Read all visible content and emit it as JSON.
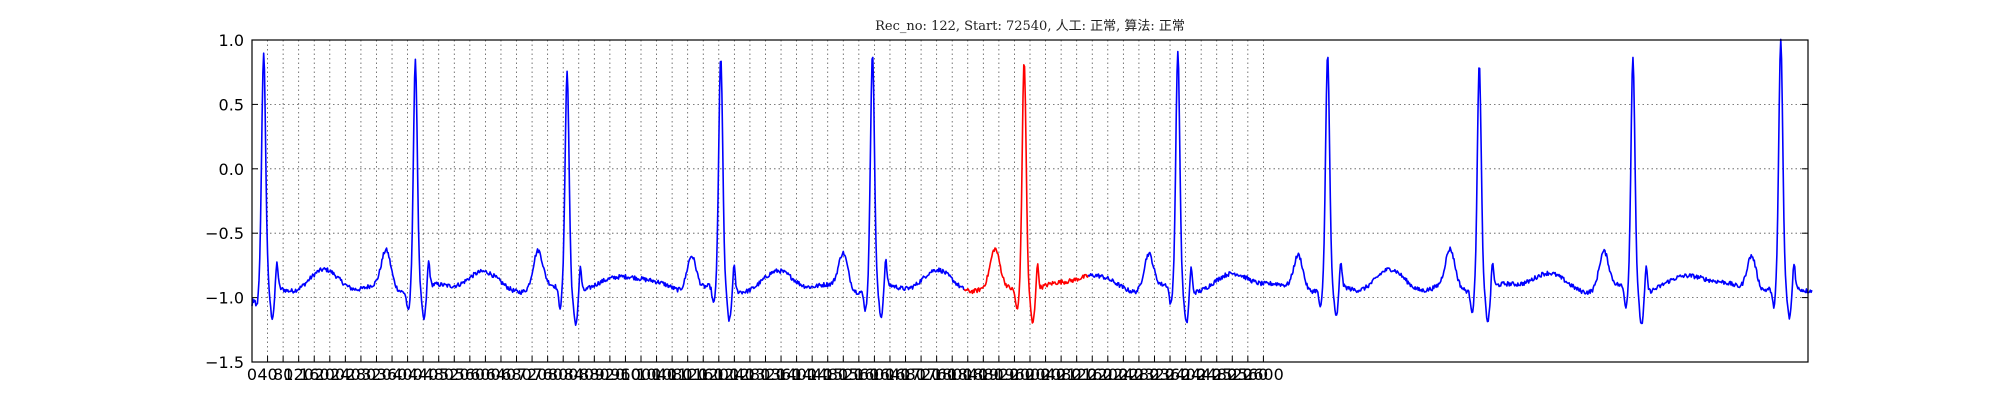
{
  "chart_data": {
    "type": "line",
    "title": "Rec_no: 122, Start: 72540, 人工: 正常, 算法: 正常",
    "xlabel": "",
    "ylabel": "",
    "xlim": [
      0,
      4000
    ],
    "ylim": [
      -1.5,
      1.0
    ],
    "grid": true,
    "y_ticks": [
      "1.0",
      "0.5",
      "0.0",
      "−0.5",
      "−1.0",
      "−1.5"
    ],
    "y_tick_values": [
      1.0,
      0.5,
      0.0,
      -0.5,
      -1.0,
      -1.5
    ],
    "x_ticks": [
      "0",
      "40",
      "80",
      "120",
      "160",
      "200",
      "240",
      "280",
      "320",
      "360",
      "400",
      "440",
      "480",
      "520",
      "560",
      "600",
      "640",
      "680",
      "720",
      "760",
      "800",
      "840",
      "880",
      "920",
      "960",
      "1000",
      "1040",
      "1080",
      "1120",
      "1160",
      "1200",
      "1240",
      "1280",
      "1320",
      "1360",
      "1400",
      "1440",
      "1480",
      "1520",
      "1560",
      "1600",
      "1640",
      "1680",
      "1720",
      "1760",
      "1800",
      "1840",
      "1880",
      "1920",
      "1960",
      "2000",
      "2040",
      "2080",
      "2120",
      "2160",
      "2200",
      "2240",
      "2280",
      "2320",
      "2360",
      "2400",
      "2440",
      "2480",
      "2520",
      "2560",
      "2600"
    ],
    "series_colors": {
      "normal": "#0000ff",
      "highlight": "#ff0000"
    },
    "beat_peaks_x": [
      30,
      420,
      810,
      1205,
      1595,
      1985,
      2380,
      2765,
      3155,
      3550,
      3930
    ],
    "r_peak_y": [
      0.82,
      0.8,
      0.72,
      0.8,
      0.85,
      0.82,
      0.85,
      0.82,
      0.78,
      0.83,
      0.92
    ],
    "highlight_range_x": [
      1830,
      2150
    ],
    "signal_end_x": 4010
  }
}
